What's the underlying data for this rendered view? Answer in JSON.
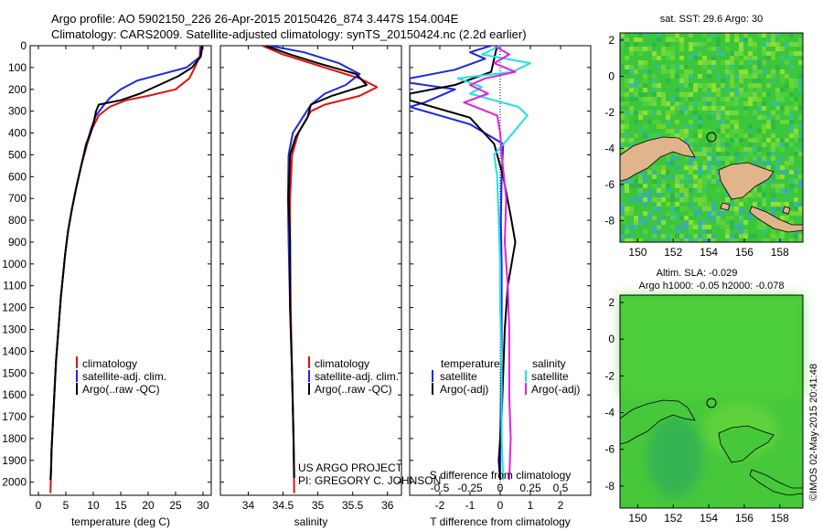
{
  "header": {
    "title_line1": "Argo profile: AO 5902150_226 26-Apr-2015 20150426_874 3.447S 154.004E",
    "title_line2": "Climatology: CARS2009. Satellite-adjusted climatology: synTS_20150424.nc (2.2d earlier)"
  },
  "credits": {
    "project": "US ARGO PROJECT",
    "pi": "PI: GREGORY C. JOHNSON",
    "timestamp": "©IMOS 02-May-2015 20:41:48"
  },
  "colors": {
    "climatology": "#e01010",
    "satellite": "#1a28e0",
    "argo": "#000000",
    "sal_satellite": "#22e0e6",
    "sal_argo": "#e020e0",
    "map_sea": "#3cc63c",
    "map_land": "#e2b48c"
  },
  "chart_data": [
    {
      "type": "line",
      "title": "",
      "xlabel": "temperature (deg C)",
      "ylabel": "",
      "xlim": [
        -1.5,
        31.5
      ],
      "ylim": [
        2060,
        0
      ],
      "xticks": [
        0,
        5,
        10,
        15,
        20,
        25,
        30
      ],
      "yticks": [
        0,
        100,
        200,
        300,
        400,
        500,
        600,
        700,
        800,
        900,
        1000,
        1100,
        1200,
        1300,
        1400,
        1500,
        1600,
        1700,
        1800,
        1900,
        2000
      ],
      "legend": {
        "position": "center-right",
        "entries": [
          "climatology",
          "satellite-adj. clim.",
          "Argo(..raw -QC)"
        ]
      },
      "series": [
        {
          "name": "climatology",
          "color": "#e01010",
          "points": [
            [
              29.5,
              0
            ],
            [
              29.4,
              50
            ],
            [
              28.5,
              100
            ],
            [
              27.5,
              150
            ],
            [
              25,
              200
            ],
            [
              20,
              230
            ],
            [
              16,
              250
            ],
            [
              13,
              280
            ],
            [
              11,
              320
            ],
            [
              9.8,
              380
            ],
            [
              8.9,
              450
            ],
            [
              7.8,
              550
            ],
            [
              6.9,
              650
            ],
            [
              6.1,
              750
            ],
            [
              5.4,
              850
            ],
            [
              4.9,
              950
            ],
            [
              4.5,
              1050
            ],
            [
              4.1,
              1150
            ],
            [
              3.8,
              1250
            ],
            [
              3.5,
              1350
            ],
            [
              3.2,
              1450
            ],
            [
              3.0,
              1550
            ],
            [
              2.8,
              1650
            ],
            [
              2.6,
              1750
            ],
            [
              2.4,
              1850
            ],
            [
              2.3,
              1950
            ],
            [
              2.2,
              2050
            ]
          ]
        },
        {
          "name": "satellite-adj. clim.",
          "color": "#1a28e0",
          "points": [
            [
              29.7,
              0
            ],
            [
              29.5,
              50
            ],
            [
              27,
              100
            ],
            [
              24,
              120
            ],
            [
              18,
              160
            ],
            [
              15,
              200
            ],
            [
              13,
              240
            ],
            [
              12,
              270
            ],
            [
              10.5,
              320
            ],
            [
              9.6,
              380
            ],
            [
              8.8,
              450
            ],
            [
              7.8,
              550
            ],
            [
              6.9,
              650
            ],
            [
              6.1,
              750
            ],
            [
              5.4,
              850
            ],
            [
              4.9,
              950
            ],
            [
              4.5,
              1050
            ],
            [
              4.1,
              1150
            ],
            [
              3.8,
              1250
            ],
            [
              3.5,
              1350
            ],
            [
              3.2,
              1450
            ],
            [
              3.0,
              1550
            ],
            [
              2.8,
              1650
            ],
            [
              2.6,
              1750
            ],
            [
              2.4,
              1850
            ],
            [
              2.3,
              1950
            ],
            [
              2.2,
              1990
            ]
          ]
        },
        {
          "name": "Argo(..raw -QC)",
          "color": "#000000",
          "points": [
            [
              29.9,
              0
            ],
            [
              29.6,
              50
            ],
            [
              28,
              100
            ],
            [
              25.5,
              140
            ],
            [
              22,
              180
            ],
            [
              18.5,
              220
            ],
            [
              15,
              250
            ],
            [
              11,
              270
            ],
            [
              10.5,
              300
            ],
            [
              10,
              360
            ],
            [
              9.5,
              400
            ],
            [
              8.7,
              450
            ],
            [
              7.8,
              550
            ],
            [
              6.9,
              650
            ],
            [
              6.1,
              750
            ],
            [
              5.4,
              850
            ],
            [
              4.9,
              950
            ],
            [
              4.5,
              1050
            ],
            [
              4.1,
              1150
            ],
            [
              3.8,
              1250
            ],
            [
              3.5,
              1350
            ],
            [
              3.2,
              1450
            ],
            [
              3.0,
              1550
            ],
            [
              2.8,
              1650
            ],
            [
              2.6,
              1750
            ],
            [
              2.4,
              1850
            ],
            [
              2.3,
              1950
            ],
            [
              2.2,
              1990
            ]
          ]
        }
      ]
    },
    {
      "type": "line",
      "title": "",
      "xlabel": "salinity",
      "ylabel": "",
      "xlim": [
        33.6,
        36.2
      ],
      "ylim": [
        2060,
        0
      ],
      "xticks": [
        34,
        34.5,
        35,
        35.5,
        36
      ],
      "legend": {
        "position": "center-right",
        "entries": [
          "climatology",
          "satellite-adj. clim.",
          "Argo(..raw -QC)"
        ]
      },
      "series": [
        {
          "name": "climatology",
          "color": "#e01010",
          "points": [
            [
              34.2,
              0
            ],
            [
              34.5,
              40
            ],
            [
              35.1,
              100
            ],
            [
              35.6,
              150
            ],
            [
              35.85,
              190
            ],
            [
              35.6,
              230
            ],
            [
              35.1,
              270
            ],
            [
              34.9,
              300
            ],
            [
              34.72,
              400
            ],
            [
              34.63,
              500
            ],
            [
              34.6,
              700
            ],
            [
              34.6,
              900
            ],
            [
              34.61,
              1200
            ],
            [
              34.63,
              1500
            ],
            [
              34.65,
              1800
            ],
            [
              34.66,
              2050
            ]
          ]
        },
        {
          "name": "satellite-adj. clim.",
          "color": "#1a28e0",
          "points": [
            [
              34.3,
              0
            ],
            [
              34.8,
              30
            ],
            [
              35.3,
              80
            ],
            [
              35.6,
              130
            ],
            [
              35.4,
              180
            ],
            [
              35.1,
              220
            ],
            [
              34.9,
              270
            ],
            [
              34.8,
              320
            ],
            [
              34.64,
              400
            ],
            [
              34.58,
              500
            ],
            [
              34.57,
              700
            ],
            [
              34.58,
              900
            ],
            [
              34.6,
              1200
            ],
            [
              34.63,
              1500
            ],
            [
              34.65,
              1800
            ],
            [
              34.66,
              1980
            ]
          ]
        },
        {
          "name": "Argo(..raw -QC)",
          "color": "#000000",
          "points": [
            [
              34.25,
              0
            ],
            [
              34.6,
              40
            ],
            [
              35.0,
              80
            ],
            [
              35.55,
              130
            ],
            [
              35.7,
              180
            ],
            [
              35.2,
              230
            ],
            [
              34.9,
              270
            ],
            [
              34.85,
              330
            ],
            [
              34.68,
              420
            ],
            [
              34.6,
              500
            ],
            [
              34.58,
              700
            ],
            [
              34.6,
              900
            ],
            [
              34.6,
              1200
            ],
            [
              34.63,
              1500
            ],
            [
              34.65,
              1800
            ],
            [
              34.66,
              1980
            ]
          ]
        }
      ]
    },
    {
      "type": "line",
      "title": "",
      "xlabel": "T difference from climatology",
      "xlabel_top": "S difference from climatology",
      "ylabel": "",
      "xlim": [
        -3.0,
        3.0
      ],
      "ylim": [
        2060,
        0
      ],
      "xticks": [
        -2,
        -1,
        0,
        1,
        2
      ],
      "xticks_sal": [
        -0.5,
        -0.25,
        0,
        0.25,
        0.5
      ],
      "xticks_sal_labels": [
        "-0.5",
        "-0.25",
        "0",
        "0.25",
        "0.5"
      ],
      "legend": {
        "position": "center",
        "temperature_header": "temperature",
        "salinity_header": "salinity",
        "temperature_entries": [
          "satellite",
          "Argo(-adj)"
        ],
        "salinity_entries": [
          "satellite",
          "Argo(-adj)"
        ]
      },
      "series": [
        {
          "name": "temperature satellite",
          "color": "#1a28e0",
          "points": [
            [
              -0.3,
              0
            ],
            [
              -1.0,
              30
            ],
            [
              -0.5,
              60
            ],
            [
              -1.5,
              110
            ],
            [
              -3.0,
              150
            ],
            [
              -3.0,
              170
            ],
            [
              -1.5,
              200
            ],
            [
              -2.5,
              260
            ],
            [
              -3.0,
              280
            ],
            [
              -1.0,
              360
            ],
            [
              0.1,
              450
            ],
            [
              0.05,
              600
            ],
            [
              0.02,
              800
            ],
            [
              0.05,
              1000
            ],
            [
              0.05,
              1400
            ],
            [
              0.0,
              1800
            ],
            [
              0.0,
              1990
            ]
          ]
        },
        {
          "name": "temperature Argo(-adj)",
          "color": "#000000",
          "points": [
            [
              -0.1,
              0
            ],
            [
              -0.2,
              60
            ],
            [
              -0.3,
              120
            ],
            [
              -1.5,
              180
            ],
            [
              -3.0,
              220
            ],
            [
              -3.0,
              250
            ],
            [
              -1.0,
              330
            ],
            [
              -0.2,
              450
            ],
            [
              0.1,
              600
            ],
            [
              0.35,
              780
            ],
            [
              0.5,
              900
            ],
            [
              0.25,
              1100
            ],
            [
              0.15,
              1300
            ],
            [
              0.1,
              1500
            ],
            [
              0.05,
              1700
            ],
            [
              -0.05,
              1900
            ],
            [
              0.0,
              1990
            ]
          ]
        },
        {
          "name": "salinity satellite",
          "color": "#22e0e6",
          "points": [
            [
              0.0,
              0
            ],
            [
              -0.6,
              40
            ],
            [
              1.0,
              80
            ],
            [
              0.4,
              120
            ],
            [
              -1.4,
              150
            ],
            [
              -0.6,
              190
            ],
            [
              -1.0,
              220
            ],
            [
              0.6,
              280
            ],
            [
              0.9,
              320
            ],
            [
              0.3,
              420
            ],
            [
              -0.2,
              500
            ],
            [
              -0.1,
              600
            ],
            [
              -0.05,
              800
            ],
            [
              0.0,
              1000
            ],
            [
              0.0,
              1200
            ],
            [
              0.05,
              1500
            ],
            [
              0.05,
              1800
            ],
            [
              0.1,
              1990
            ]
          ]
        },
        {
          "name": "salinity Argo(-adj)",
          "color": "#e020e0",
          "points": [
            [
              -0.2,
              0
            ],
            [
              0.3,
              40
            ],
            [
              -0.2,
              80
            ],
            [
              0.5,
              120
            ],
            [
              -0.5,
              150
            ],
            [
              -1.0,
              180
            ],
            [
              -0.4,
              220
            ],
            [
              -1.2,
              260
            ],
            [
              -0.1,
              320
            ],
            [
              0.0,
              400
            ],
            [
              0.05,
              500
            ],
            [
              0.2,
              700
            ],
            [
              0.15,
              900
            ],
            [
              0.25,
              1100
            ],
            [
              0.3,
              1300
            ],
            [
              0.3,
              1600
            ],
            [
              0.35,
              1800
            ],
            [
              0.3,
              1990
            ]
          ]
        }
      ]
    },
    {
      "type": "heatmap",
      "title": "sat. SST: 29.6 Argo: 30",
      "xlabel": "",
      "ylabel": "",
      "xlim": [
        149,
        159.3
      ],
      "ylim": [
        -9.2,
        2.4
      ],
      "xticks": [
        150,
        152,
        154,
        156,
        158
      ],
      "yticks": [
        2,
        0,
        -2,
        -4,
        -6,
        -8
      ],
      "argo_position": [
        154.004,
        -3.447
      ]
    },
    {
      "type": "heatmap",
      "title": "Altim. SLA: -0.029",
      "subtitle": "Argo h1000: -0.05 h2000: -0.078",
      "xlabel": "",
      "ylabel": "",
      "xlim": [
        149,
        159.3
      ],
      "ylim": [
        -9.2,
        2.4
      ],
      "xticks": [
        150,
        152,
        154,
        156,
        158
      ],
      "yticks": [
        2,
        0,
        -2,
        -4,
        -6,
        -8
      ],
      "argo_position": [
        154.004,
        -3.447
      ]
    }
  ]
}
